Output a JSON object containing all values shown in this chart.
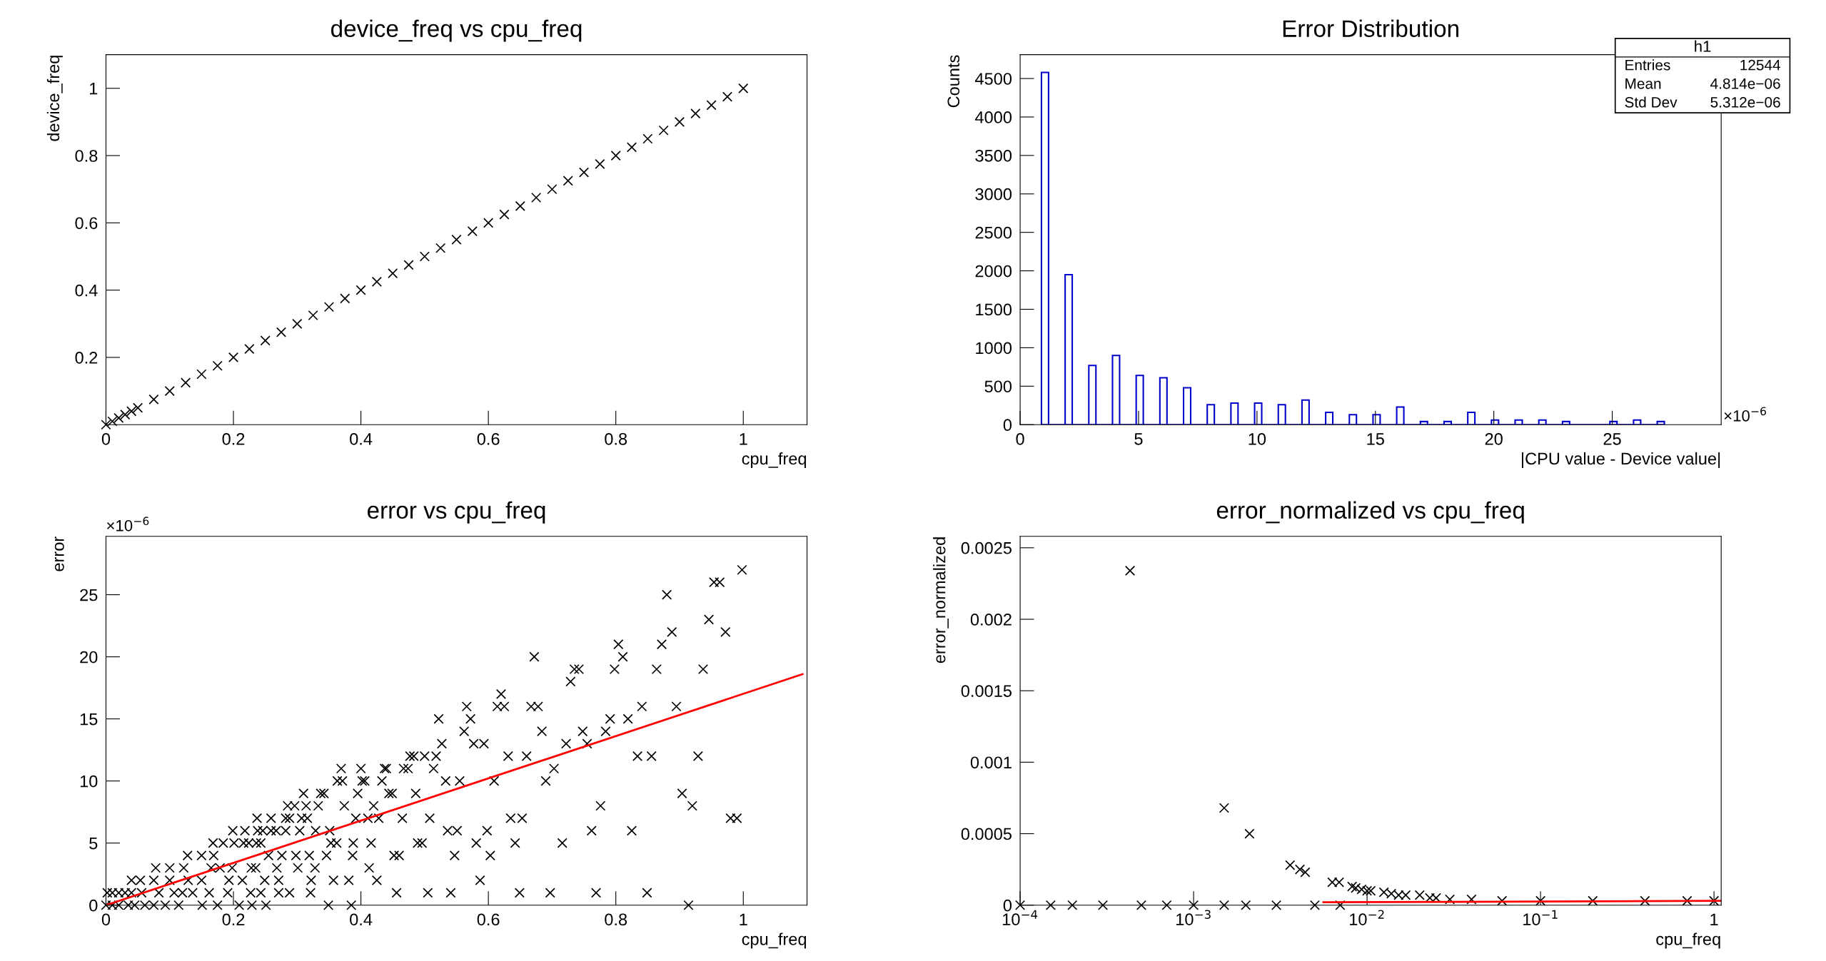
{
  "chart_data": [
    {
      "type": "scatter",
      "title": "device_freq vs cpu_freq",
      "xlabel": "cpu_freq",
      "ylabel": "device_freq",
      "series": [
        {
          "color": "#000000",
          "marker": "cross",
          "x": [
            0,
            0.01,
            0.02,
            0.03,
            0.04,
            0.05,
            0.075,
            0.1,
            0.125,
            0.15,
            0.175,
            0.2,
            0.225,
            0.25,
            0.275,
            0.3,
            0.325,
            0.35,
            0.375,
            0.4,
            0.425,
            0.45,
            0.475,
            0.5,
            0.525,
            0.55,
            0.575,
            0.6,
            0.625,
            0.65,
            0.675,
            0.7,
            0.725,
            0.75,
            0.775,
            0.8,
            0.825,
            0.85,
            0.875,
            0.9,
            0.925,
            0.95,
            0.975,
            1
          ],
          "values": [
            0,
            0.01,
            0.02,
            0.03,
            0.04,
            0.05,
            0.075,
            0.1,
            0.125,
            0.15,
            0.175,
            0.2,
            0.225,
            0.25,
            0.275,
            0.3,
            0.325,
            0.35,
            0.375,
            0.4,
            0.425,
            0.45,
            0.475,
            0.5,
            0.525,
            0.55,
            0.575,
            0.6,
            0.625,
            0.65,
            0.675,
            0.7,
            0.725,
            0.75,
            0.775,
            0.8,
            0.825,
            0.85,
            0.875,
            0.9,
            0.925,
            0.95,
            0.975,
            1
          ]
        }
      ],
      "xlim": [
        0,
        1.1
      ],
      "ylim": [
        0,
        1.1
      ],
      "xticks": [
        0,
        0.2,
        0.4,
        0.6,
        0.8,
        1
      ],
      "yticks": [
        0.2,
        0.4,
        0.6,
        0.8,
        1
      ]
    },
    {
      "type": "histogram",
      "title": "Error Distribution",
      "xlabel": "|CPU value - Device value|",
      "ylabel": "Counts",
      "color": "#0000cc",
      "bins": [
        0.9,
        1.2,
        1.9,
        2.2,
        2.9,
        3.2,
        3.9,
        4.2,
        4.9,
        5.2,
        5.9,
        6.2,
        6.9,
        7.2,
        7.9,
        8.2,
        8.9,
        9.2,
        9.9,
        10.2,
        10.9,
        11.2,
        11.9,
        12.2,
        12.9,
        13.2,
        13.9,
        14.2,
        14.9,
        15.2,
        15.9,
        16.2,
        16.9,
        17.2,
        17.9,
        18.2,
        18.9,
        19.2,
        19.9,
        20.2,
        20.9,
        21.2,
        21.9,
        22.2,
        22.9,
        23.2,
        24.9,
        25.2,
        25.9,
        26.2,
        26.9,
        27.2
      ],
      "values": [
        4580,
        0,
        1950,
        0,
        770,
        0,
        900,
        0,
        640,
        0,
        610,
        0,
        480,
        0,
        260,
        0,
        280,
        0,
        280,
        0,
        260,
        0,
        320,
        0,
        160,
        0,
        130,
        0,
        130,
        0,
        230,
        0,
        40,
        0,
        40,
        0,
        160,
        0,
        60,
        0,
        60,
        0,
        60,
        0,
        40,
        0,
        40,
        0,
        60,
        0,
        40
      ],
      "xlim": [
        0,
        29.6
      ],
      "ylim": [
        0,
        4810
      ],
      "xticks": [
        0,
        5,
        10,
        15,
        20,
        25
      ],
      "yticks": [
        0,
        500,
        1000,
        1500,
        2000,
        2500,
        3000,
        3500,
        4000,
        4500
      ],
      "annotations": [
        "×10$^{−6}$",
        "h1",
        "Entries",
        "12544",
        "Mean",
        "4.814e−06",
        "Std Dev",
        "5.312e−06"
      ]
    },
    {
      "type": "scatter",
      "title": "error vs cpu_freq",
      "xlabel": "cpu_freq",
      "ylabel": "error",
      "series": [
        {
          "color": "#000000",
          "marker": "cross",
          "x": [
            0.998,
            0.954,
            0.963,
            0.88,
            0.946,
            0.888,
            0.972,
            0.804,
            0.872,
            0.672,
            0.811,
            0.735,
            0.742,
            0.798,
            0.864,
            0.937,
            0.729,
            0.62,
            0.566,
            0.614,
            0.625,
            0.667,
            0.678,
            0.841,
            0.895,
            0.522,
            0.572,
            0.791,
            0.819,
            0.562,
            0.684,
            0.748,
            0.784,
            0.527,
            0.577,
            0.593,
            0.722,
            0.755,
            0.477,
            0.483,
            0.5,
            0.518,
            0.631,
            0.66,
            0.834,
            0.856,
            0.929,
            0.369,
            0.4,
            0.437,
            0.44,
            0.467,
            0.474,
            0.514,
            0.703,
            0.363,
            0.371,
            0.402,
            0.406,
            0.433,
            0.533,
            0.555,
            0.609,
            0.69,
            0.31,
            0.337,
            0.342,
            0.395,
            0.444,
            0.449,
            0.486,
            0.904,
            0.285,
            0.296,
            0.314,
            0.333,
            0.374,
            0.42,
            0.776,
            0.92,
            0.237,
            0.259,
            0.282,
            0.288,
            0.307,
            0.316,
            0.392,
            0.411,
            0.428,
            0.465,
            0.508,
            0.635,
            0.653,
            0.98,
            0.99,
            0.199,
            0.218,
            0.238,
            0.246,
            0.259,
            0.267,
            0.282,
            0.304,
            0.329,
            0.351,
            0.536,
            0.551,
            0.598,
            0.762,
            0.825,
            0.168,
            0.184,
            0.201,
            0.216,
            0.224,
            0.236,
            0.243,
            0.353,
            0.362,
            0.388,
            0.416,
            0.489,
            0.496,
            0.581,
            0.642,
            0.716,
            0.128,
            0.15,
            0.169,
            0.255,
            0.276,
            0.298,
            0.319,
            0.346,
            0.387,
            0.452,
            0.46,
            0.547,
            0.603,
            0.078,
            0.1,
            0.122,
            0.165,
            0.179,
            0.198,
            0.228,
            0.235,
            0.268,
            0.301,
            0.328,
            0.413,
            0.04,
            0.054,
            0.075,
            0.1,
            0.129,
            0.15,
            0.193,
            0.214,
            0.249,
            0.271,
            0.322,
            0.357,
            0.381,
            0.425,
            0.587,
            0.002,
            0.01,
            0.02,
            0.03,
            0.04,
            0.056,
            0.083,
            0.107,
            0.12,
            0.136,
            0.162,
            0.191,
            0.227,
            0.243,
            0.271,
            0.288,
            0.321,
            0.456,
            0.505,
            0.541,
            0.649,
            0.697,
            0.769,
            0.849,
            0,
            0.01,
            0.02,
            0.035,
            0.045,
            0.061,
            0.075,
            0.093,
            0.114,
            0.151,
            0.175,
            0.209,
            0.229,
            0.251,
            0.349,
            0.385,
            0.914
          ],
          "values": [
            27,
            26,
            26,
            25,
            23,
            22,
            22,
            21,
            21,
            20,
            20,
            19,
            19,
            19,
            19,
            19,
            18,
            17,
            16,
            16,
            16,
            16,
            16,
            16,
            16,
            15,
            15,
            15,
            15,
            14,
            14,
            14,
            14,
            13,
            13,
            13,
            13,
            13,
            12,
            12,
            12,
            12,
            12,
            12,
            12,
            12,
            12,
            11,
            11,
            11,
            11,
            11,
            11,
            11,
            11,
            10,
            10,
            10,
            10,
            10,
            10,
            10,
            10,
            10,
            9,
            9,
            9,
            9,
            9,
            9,
            9,
            9,
            8,
            8,
            8,
            8,
            8,
            8,
            8,
            8,
            7,
            7,
            7,
            7,
            7,
            7,
            7,
            7,
            7,
            7,
            7,
            7,
            7,
            7,
            7,
            6,
            6,
            6,
            6,
            6,
            6,
            6,
            6,
            6,
            6,
            6,
            6,
            6,
            6,
            6,
            5,
            5,
            5,
            5,
            5,
            5,
            5,
            5,
            5,
            5,
            5,
            5,
            5,
            5,
            5,
            5,
            4,
            4,
            4,
            4,
            4,
            4,
            4,
            4,
            4,
            4,
            4,
            4,
            4,
            3,
            3,
            3,
            3,
            3,
            3,
            3,
            3,
            3,
            3,
            3,
            3,
            2,
            2,
            2,
            2,
            2,
            2,
            2,
            2,
            2,
            2,
            2,
            2,
            2,
            2,
            2,
            1,
            1,
            1,
            1,
            1,
            1,
            1,
            1,
            1,
            1,
            1,
            1,
            1,
            1,
            1,
            1,
            1,
            1,
            1,
            1,
            1,
            1,
            1,
            1,
            0,
            0,
            0,
            0,
            0,
            0,
            0,
            0,
            0,
            0,
            0,
            0,
            0,
            0,
            0,
            0,
            0
          ]
        },
        {
          "type": "line",
          "color": "#ff0000",
          "marker": "none",
          "x": [
            0,
            1.093
          ],
          "values": [
            0,
            18.6
          ]
        }
      ],
      "xlim": [
        0,
        1.1
      ],
      "ylim": [
        0,
        29.7
      ],
      "xticks": [
        0,
        0.2,
        0.4,
        0.6,
        0.8,
        1
      ],
      "yticks": [
        0,
        5,
        10,
        15,
        20,
        25
      ],
      "annotations": [
        "×10$^{−6}$"
      ]
    },
    {
      "type": "scatter",
      "title": "error_normalized vs cpu_freq",
      "xlabel": "cpu_freq",
      "ylabel": "error_normalized",
      "log": "x",
      "series": [
        {
          "color": "#000000",
          "marker": "cross",
          "x": [
            0.0001,
            0.00015,
            0.0002,
            0.0003,
            0.0005,
            0.0007,
            0.001,
            0.0015,
            0.002,
            0.003,
            0.005,
            0.007,
            0.00043,
            0.0015,
            0.0021,
            0.0036,
            0.0041,
            0.0044,
            0.0063,
            0.0069,
            0.0082,
            0.0086,
            0.0093,
            0.01,
            0.0105,
            0.0125,
            0.0138,
            0.0152,
            0.0167,
            0.0201,
            0.023,
            0.025,
            0.03,
            0.04,
            0.06,
            0.1,
            0.2,
            0.4,
            0.7,
            1
          ],
          "values": [
            0,
            0,
            0,
            0,
            0,
            0,
            0,
            0,
            0,
            0,
            0,
            0,
            0.00234,
            0.00068,
            0.0005,
            0.00028,
            0.00025,
            0.00023,
            0.00016,
            0.00016,
            0.00013,
            0.00012,
            0.00011,
            0.0001,
            0.0001,
            9e-05,
            8e-05,
            7e-05,
            7e-05,
            7e-05,
            5e-05,
            5e-05,
            4e-05,
            4e-05,
            3e-05,
            3e-05,
            3e-05,
            3e-05,
            3e-05,
            3e-05
          ]
        },
        {
          "type": "line",
          "color": "#ff0000",
          "marker": "none",
          "x": [
            0.0056,
            1.1
          ],
          "values": [
            2e-05,
            3e-05
          ]
        }
      ],
      "xlim": [
        0.0001,
        1.1
      ],
      "ylim": [
        0,
        0.00258
      ],
      "xticks": [
        {
          "value": 0.0001,
          "label": "10$^{−4}$"
        },
        {
          "value": 0.001,
          "label": "10$^{−3}$"
        },
        {
          "value": 0.01,
          "label": "10$^{−2}$"
        },
        {
          "value": 0.1,
          "label": "10$^{−1}$"
        },
        1
      ],
      "yticks": [
        0,
        0.0005,
        0.001,
        0.0015,
        0.002,
        0.0025
      ]
    }
  ]
}
